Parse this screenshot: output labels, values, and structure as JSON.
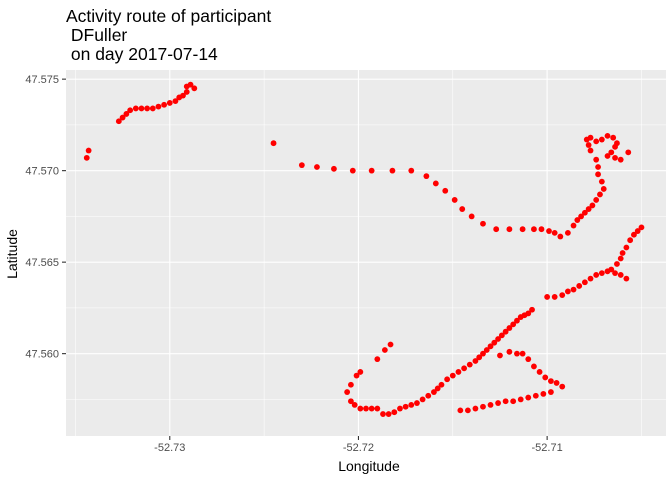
{
  "chart_data": {
    "type": "scatter",
    "title": [
      "Activity route of participant",
      " DFuller",
      " on day 2017-07-14"
    ],
    "xlabel": "Longitude",
    "ylabel": "Latitude",
    "xlim": [
      -52.7355,
      -52.7037
    ],
    "ylim": [
      47.5555,
      47.5755
    ],
    "x_ticks": [
      -52.73,
      -52.72,
      -52.71
    ],
    "x_tick_labels": [
      "-52.73",
      "-52.72",
      "-52.71"
    ],
    "y_ticks": [
      47.56,
      47.565,
      47.57,
      47.575
    ],
    "y_tick_labels": [
      "47.560",
      "47.565",
      "47.570",
      "47.575"
    ],
    "grid": true,
    "background": "#EBEBEB",
    "point_color": "#FF0000",
    "series": [
      {
        "points": [
          [
            -52.7343,
            47.5711
          ],
          [
            -52.7344,
            47.5707
          ],
          [
            -52.7327,
            47.5727
          ],
          [
            -52.7325,
            47.5729
          ],
          [
            -52.7323,
            47.5731
          ],
          [
            -52.7321,
            47.5733
          ],
          [
            -52.7318,
            47.5734
          ],
          [
            -52.7315,
            47.5734
          ],
          [
            -52.7312,
            47.5734
          ],
          [
            -52.7309,
            47.5734
          ],
          [
            -52.7306,
            47.5735
          ],
          [
            -52.7303,
            47.5736
          ],
          [
            -52.73,
            47.5737
          ],
          [
            -52.7297,
            47.5738
          ],
          [
            -52.7295,
            47.574
          ],
          [
            -52.7293,
            47.5741
          ],
          [
            -52.7291,
            47.5743
          ],
          [
            -52.7291,
            47.5746
          ],
          [
            -52.7289,
            47.5747
          ],
          [
            -52.7287,
            47.5745
          ],
          [
            -52.7245,
            47.5715
          ],
          [
            -52.723,
            47.5703
          ],
          [
            -52.7222,
            47.5702
          ],
          [
            -52.7213,
            47.5701
          ],
          [
            -52.7203,
            47.57
          ],
          [
            -52.7193,
            47.57
          ],
          [
            -52.7182,
            47.57
          ],
          [
            -52.7172,
            47.57
          ],
          [
            -52.7164,
            47.5697
          ],
          [
            -52.7159,
            47.5693
          ],
          [
            -52.7154,
            47.5689
          ],
          [
            -52.7149,
            47.5684
          ],
          [
            -52.7145,
            47.5679
          ],
          [
            -52.714,
            47.5675
          ],
          [
            -52.7134,
            47.5671
          ],
          [
            -52.7127,
            47.5668
          ],
          [
            -52.712,
            47.5668
          ],
          [
            -52.7113,
            47.5668
          ],
          [
            -52.7107,
            47.5668
          ],
          [
            -52.7103,
            47.5668
          ],
          [
            -52.7099,
            47.5667
          ],
          [
            -52.7096,
            47.5666
          ],
          [
            -52.7093,
            47.5664
          ],
          [
            -52.7089,
            47.5666
          ],
          [
            -52.7086,
            47.567
          ],
          [
            -52.7084,
            47.5673
          ],
          [
            -52.7082,
            47.5675
          ],
          [
            -52.708,
            47.5677
          ],
          [
            -52.7078,
            47.5679
          ],
          [
            -52.7076,
            47.5681
          ],
          [
            -52.7074,
            47.5684
          ],
          [
            -52.7072,
            47.5687
          ],
          [
            -52.707,
            47.569
          ],
          [
            -52.7071,
            47.5694
          ],
          [
            -52.7073,
            47.5698
          ],
          [
            -52.7073,
            47.5702
          ],
          [
            -52.7074,
            47.5706
          ],
          [
            -52.7077,
            47.5711
          ],
          [
            -52.7078,
            47.5714
          ],
          [
            -52.7079,
            47.5717
          ],
          [
            -52.7077,
            47.5718
          ],
          [
            -52.7074,
            47.5716
          ],
          [
            -52.7071,
            47.5717
          ],
          [
            -52.7068,
            47.5719
          ],
          [
            -52.7065,
            47.5718
          ],
          [
            -52.7063,
            47.5715
          ],
          [
            -52.7064,
            47.5713
          ],
          [
            -52.7066,
            47.571
          ],
          [
            -52.7068,
            47.5708
          ],
          [
            -52.7064,
            47.5707
          ],
          [
            -52.7061,
            47.5706
          ],
          [
            -52.7057,
            47.571
          ],
          [
            -52.705,
            47.5669
          ],
          [
            -52.7052,
            47.5667
          ],
          [
            -52.7054,
            47.5665
          ],
          [
            -52.7056,
            47.5662
          ],
          [
            -52.7058,
            47.5658
          ],
          [
            -52.706,
            47.5655
          ],
          [
            -52.7061,
            47.5652
          ],
          [
            -52.7063,
            47.5649
          ],
          [
            -52.7066,
            47.5646
          ],
          [
            -52.7068,
            47.5645
          ],
          [
            -52.7071,
            47.5644
          ],
          [
            -52.7074,
            47.5643
          ],
          [
            -52.7077,
            47.5641
          ],
          [
            -52.708,
            47.5639
          ],
          [
            -52.7083,
            47.5637
          ],
          [
            -52.7086,
            47.5635
          ],
          [
            -52.7089,
            47.5634
          ],
          [
            -52.7092,
            47.5632
          ],
          [
            -52.7096,
            47.5631
          ],
          [
            -52.71,
            47.5631
          ],
          [
            -52.7058,
            47.5641
          ],
          [
            -52.7061,
            47.5643
          ],
          [
            -52.7064,
            47.5644
          ],
          [
            -52.7108,
            47.5624
          ],
          [
            -52.711,
            47.5622
          ],
          [
            -52.7112,
            47.5621
          ],
          [
            -52.7114,
            47.562
          ],
          [
            -52.7116,
            47.5618
          ],
          [
            -52.7118,
            47.5616
          ],
          [
            -52.712,
            47.5614
          ],
          [
            -52.7122,
            47.5612
          ],
          [
            -52.7124,
            47.561
          ],
          [
            -52.7126,
            47.5608
          ],
          [
            -52.7128,
            47.5606
          ],
          [
            -52.713,
            47.5604
          ],
          [
            -52.7132,
            47.5602
          ],
          [
            -52.7134,
            47.56
          ],
          [
            -52.7136,
            47.5598
          ],
          [
            -52.7138,
            47.5596
          ],
          [
            -52.7141,
            47.5594
          ],
          [
            -52.7144,
            47.5592
          ],
          [
            -52.7147,
            47.559
          ],
          [
            -52.715,
            47.5588
          ],
          [
            -52.7153,
            47.5586
          ],
          [
            -52.7156,
            47.5583
          ],
          [
            -52.7158,
            47.5581
          ],
          [
            -52.716,
            47.5579
          ],
          [
            -52.7163,
            47.5577
          ],
          [
            -52.7166,
            47.5575
          ],
          [
            -52.7169,
            47.5573
          ],
          [
            -52.7172,
            47.5572
          ],
          [
            -52.7175,
            47.5571
          ],
          [
            -52.7178,
            47.557
          ],
          [
            -52.7181,
            47.5568
          ],
          [
            -52.7184,
            47.5567
          ],
          [
            -52.7187,
            47.5567
          ],
          [
            -52.719,
            47.557
          ],
          [
            -52.7193,
            47.557
          ],
          [
            -52.7196,
            47.557
          ],
          [
            -52.7199,
            47.557
          ],
          [
            -52.7202,
            47.5572
          ],
          [
            -52.7204,
            47.5574
          ],
          [
            -52.7206,
            47.5579
          ],
          [
            -52.7204,
            47.5583
          ],
          [
            -52.7201,
            47.5588
          ],
          [
            -52.7199,
            47.559
          ],
          [
            -52.719,
            47.5597
          ],
          [
            -52.7186,
            47.5602
          ],
          [
            -52.7183,
            47.5605
          ],
          [
            -52.7125,
            47.5599
          ],
          [
            -52.712,
            47.5601
          ],
          [
            -52.7116,
            47.56
          ],
          [
            -52.7113,
            47.56
          ],
          [
            -52.711,
            47.5597
          ],
          [
            -52.7107,
            47.5593
          ],
          [
            -52.7104,
            47.559
          ],
          [
            -52.7101,
            47.5587
          ],
          [
            -52.7098,
            47.5585
          ],
          [
            -52.7095,
            47.5584
          ],
          [
            -52.7092,
            47.5582
          ],
          [
            -52.7098,
            47.5579
          ],
          [
            -52.7102,
            47.5578
          ],
          [
            -52.7106,
            47.5577
          ],
          [
            -52.711,
            47.5576
          ],
          [
            -52.7114,
            47.5575
          ],
          [
            -52.7118,
            47.5574
          ],
          [
            -52.7122,
            47.5574
          ],
          [
            -52.7126,
            47.5573
          ],
          [
            -52.713,
            47.5572
          ],
          [
            -52.7134,
            47.5571
          ],
          [
            -52.7138,
            47.557
          ],
          [
            -52.7142,
            47.5569
          ],
          [
            -52.7146,
            47.5569
          ]
        ]
      }
    ]
  }
}
